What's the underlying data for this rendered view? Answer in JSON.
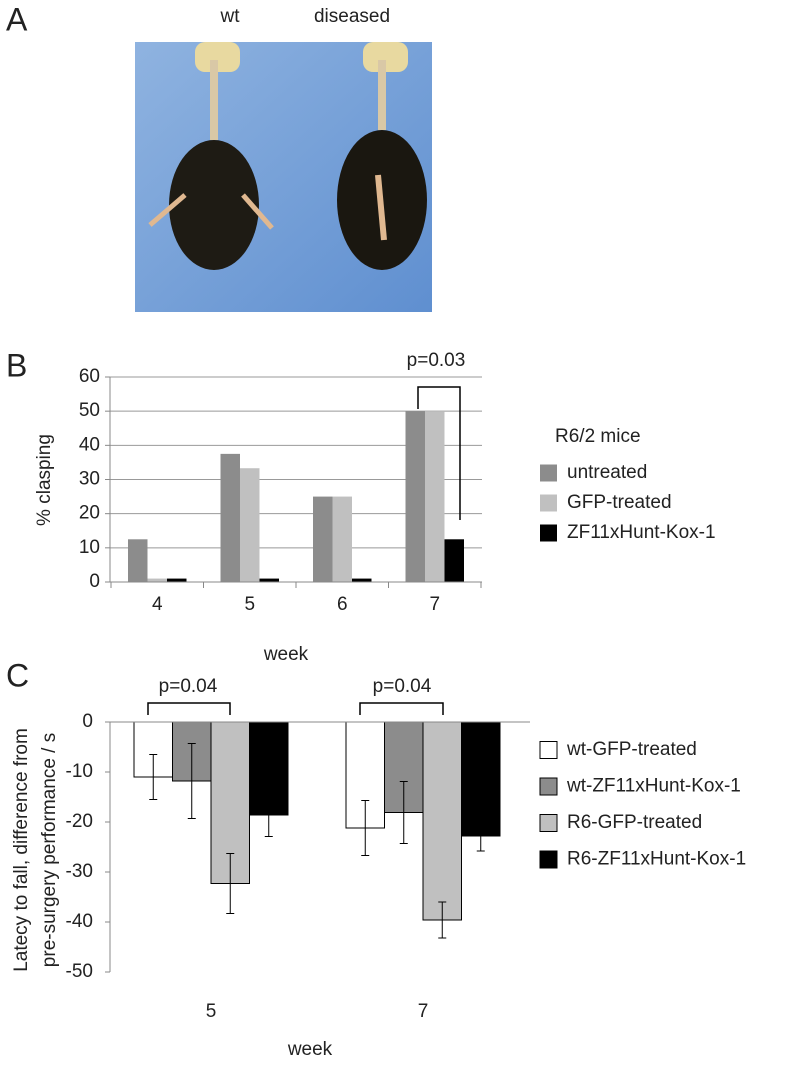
{
  "panel_a": {
    "label": "A",
    "captions": [
      "wt",
      "diseased"
    ]
  },
  "chart_data": [
    {
      "type": "bar",
      "panel_label": "B",
      "xlabel": "week",
      "ylabel": [
        "% clasping"
      ],
      "categories": [
        "4",
        "5",
        "6",
        "7"
      ],
      "series": [
        {
          "name": "untreated",
          "color": "#8c8c8c",
          "values": [
            12.5,
            37.5,
            25,
            50
          ]
        },
        {
          "name": "GFP-treated",
          "color": "#c0c0c0",
          "values": [
            1,
            33.3,
            25,
            50
          ]
        },
        {
          "name": "ZF11xHunt-Kox-1",
          "color": "#000000",
          "values": [
            1,
            1,
            1,
            12.5
          ]
        }
      ],
      "ylim": [
        0,
        60
      ],
      "yticks": [
        0,
        10,
        20,
        30,
        40,
        50,
        60
      ],
      "grid": true,
      "legend_title": "R6/2 mice",
      "annotations": [
        "p=0.03"
      ]
    },
    {
      "type": "bar",
      "panel_label": "C",
      "xlabel": "week",
      "ylabel": [
        "Latecy to fall, difference from",
        "pre-surgery performance / s"
      ],
      "categories": [
        "5",
        "7"
      ],
      "series": [
        {
          "name": "wt-GFP-treated",
          "color": "#ffffff",
          "values": [
            -11,
            -21.2
          ],
          "errors": [
            4.5,
            5.5
          ]
        },
        {
          "name": "wt-ZF11xHunt-Kox-1",
          "color": "#8c8c8c",
          "values": [
            -11.8,
            -18.1
          ],
          "errors": [
            7.5,
            6.2
          ]
        },
        {
          "name": "R6-GFP-treated",
          "color": "#c0c0c0",
          "values": [
            -32.3,
            -39.6
          ],
          "errors": [
            6,
            3.6
          ]
        },
        {
          "name": "R6-ZF11xHunt-Kox-1",
          "color": "#000000",
          "values": [
            -18.6,
            -22.8
          ],
          "errors": [
            4.3,
            3
          ]
        }
      ],
      "ylim": [
        -50,
        0
      ],
      "yticks": [
        -50,
        -40,
        -30,
        -20,
        -10,
        0
      ],
      "grid": false,
      "bar_edgecolor": "#000000",
      "annotations": [
        "p=0.04",
        "p=0.04"
      ]
    }
  ]
}
